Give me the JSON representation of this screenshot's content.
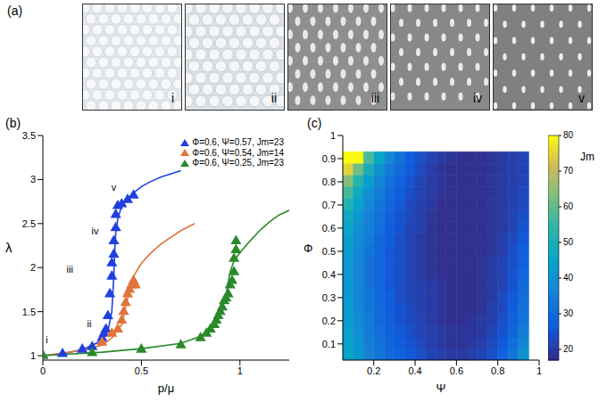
{
  "image_panel": {
    "letter": "(a)",
    "labels": [
      "i",
      "ii",
      "iii",
      "iv",
      "v"
    ]
  },
  "chart_data": [
    {
      "letter": "(b)",
      "type": "scatter",
      "x_label": "p/μ",
      "y_label": "λ",
      "xlim": [
        0,
        1.25
      ],
      "ylim": [
        0.95,
        3.5
      ],
      "xticks": [
        0,
        0.5,
        1
      ],
      "yticks": [
        1,
        1.5,
        2,
        2.5,
        3,
        3.5
      ],
      "legend": "upper right",
      "series": [
        {
          "name": "Φ=0.6, Ψ=0.57, Jm=23",
          "color": "#1f3fe0",
          "marker": "triangle",
          "x": [
            0,
            0.1,
            0.2,
            0.25,
            0.3,
            0.31,
            0.32,
            0.33,
            0.34,
            0.35,
            0.35,
            0.36,
            0.36,
            0.37,
            0.37,
            0.38,
            0.4,
            0.43,
            0.46
          ],
          "values": [
            1,
            1.02,
            1.07,
            1.1,
            1.2,
            1.25,
            1.3,
            1.45,
            1.7,
            1.9,
            2.05,
            2.15,
            2.3,
            2.45,
            2.6,
            2.7,
            2.72,
            2.77,
            2.82
          ],
          "fit": {
            "x": [
              0,
              0.1,
              0.2,
              0.3,
              0.33,
              0.35,
              0.36,
              0.365,
              0.37,
              0.38,
              0.4,
              0.45,
              0.5,
              0.55,
              0.6,
              0.7
            ],
            "values": [
              1,
              1.02,
              1.07,
              1.17,
              1.28,
              1.5,
              1.9,
              2.2,
              2.4,
              2.55,
              2.7,
              2.83,
              2.92,
              2.98,
              3.03,
              3.1
            ]
          }
        },
        {
          "name": "Φ=0.6, Ψ=0.54, Jm=14",
          "color": "#e0733a",
          "marker": "triangle",
          "x": [
            0.3,
            0.35,
            0.38,
            0.4,
            0.41,
            0.42,
            0.43,
            0.44,
            0.45,
            0.46,
            0.47
          ],
          "values": [
            1.15,
            1.25,
            1.3,
            1.4,
            1.5,
            1.6,
            1.7,
            1.75,
            1.8,
            1.85,
            1.8
          ],
          "fit": {
            "x": [
              0,
              0.2,
              0.3,
              0.35,
              0.4,
              0.42,
              0.44,
              0.46,
              0.5,
              0.55,
              0.6,
              0.7,
              0.77
            ],
            "values": [
              1,
              1.06,
              1.12,
              1.2,
              1.35,
              1.55,
              1.75,
              1.9,
              2.05,
              2.17,
              2.27,
              2.42,
              2.5
            ]
          }
        },
        {
          "name": "Φ=0.6, Ψ=0.25, Jm=23",
          "color": "#2a8a2a",
          "marker": "triangle",
          "x": [
            0,
            0.25,
            0.5,
            0.7,
            0.8,
            0.83,
            0.85,
            0.87,
            0.88,
            0.89,
            0.9,
            0.91,
            0.92,
            0.93,
            0.94,
            0.95,
            0.96,
            0.97,
            0.97,
            0.98,
            0.98
          ],
          "values": [
            1,
            1.03,
            1.07,
            1.12,
            1.2,
            1.25,
            1.3,
            1.35,
            1.4,
            1.45,
            1.5,
            1.55,
            1.62,
            1.65,
            1.7,
            1.8,
            1.85,
            1.95,
            2.1,
            2.2,
            2.3
          ],
          "fit": {
            "x": [
              0,
              0.3,
              0.5,
              0.7,
              0.8,
              0.85,
              0.9,
              0.93,
              0.95,
              0.97,
              1,
              1.05,
              1.1,
              1.15,
              1.2,
              1.25
            ],
            "values": [
              1,
              1.04,
              1.08,
              1.14,
              1.22,
              1.32,
              1.5,
              1.7,
              1.95,
              2.08,
              2.17,
              2.3,
              2.42,
              2.52,
              2.6,
              2.65
            ]
          }
        }
      ],
      "annotations": [
        {
          "text": "i",
          "x": 0.02,
          "y": 1.17
        },
        {
          "text": "ii",
          "x": 0.235,
          "y": 1.35
        },
        {
          "text": "iii",
          "x": 0.137,
          "y": 1.97
        },
        {
          "text": "iv",
          "x": 0.265,
          "y": 2.41
        },
        {
          "text": "v",
          "x": 0.36,
          "y": 2.9
        }
      ]
    },
    {
      "letter": "(c)",
      "type": "heatmap",
      "x_label": "Ψ",
      "y_label": "Φ",
      "xlim": [
        0.05,
        1
      ],
      "ylim": [
        0.03,
        1
      ],
      "xticks": [
        0.2,
        0.4,
        0.6,
        0.8,
        1
      ],
      "yticks": [
        0.1,
        0.2,
        0.3,
        0.4,
        0.5,
        0.6,
        0.7,
        0.8,
        0.9,
        1
      ],
      "x": [
        0.075,
        0.125,
        0.175,
        0.225,
        0.275,
        0.325,
        0.375,
        0.425,
        0.475,
        0.525,
        0.575,
        0.625,
        0.675,
        0.725,
        0.775,
        0.825,
        0.875,
        0.925
      ],
      "y": [
        0.055,
        0.105,
        0.155,
        0.205,
        0.255,
        0.305,
        0.355,
        0.405,
        0.455,
        0.505,
        0.555,
        0.605,
        0.655,
        0.705,
        0.755,
        0.805,
        0.855,
        0.905
      ],
      "cells": [
        [
          46,
          42,
          36,
          33,
          30,
          28,
          26,
          24,
          22,
          21,
          20,
          20,
          21,
          22,
          24,
          28,
          33,
          40
        ],
        [
          45,
          41,
          35,
          32,
          29,
          27,
          25,
          23,
          21,
          20,
          19,
          19,
          20,
          21,
          23,
          26,
          31,
          37
        ],
        [
          44,
          40,
          34,
          31,
          28,
          26,
          24,
          22,
          21,
          20,
          19,
          19,
          19,
          20,
          22,
          25,
          29,
          35
        ],
        [
          43,
          39,
          34,
          30,
          28,
          25,
          23,
          22,
          20,
          19,
          18,
          18,
          19,
          20,
          21,
          24,
          28,
          33
        ],
        [
          43,
          38,
          33,
          30,
          27,
          25,
          23,
          21,
          20,
          19,
          18,
          18,
          18,
          19,
          21,
          23,
          27,
          32
        ],
        [
          42,
          37,
          33,
          29,
          27,
          24,
          22,
          21,
          20,
          19,
          18,
          18,
          18,
          19,
          20,
          23,
          26,
          31
        ],
        [
          42,
          37,
          32,
          29,
          26,
          24,
          22,
          21,
          20,
          19,
          18,
          18,
          18,
          19,
          20,
          22,
          25,
          30
        ],
        [
          42,
          37,
          32,
          29,
          26,
          24,
          22,
          20,
          19,
          18,
          18,
          18,
          18,
          19,
          20,
          22,
          25,
          29
        ],
        [
          42,
          37,
          32,
          29,
          26,
          24,
          22,
          20,
          19,
          18,
          18,
          18,
          18,
          19,
          20,
          22,
          24,
          28
        ],
        [
          43,
          38,
          33,
          29,
          26,
          24,
          22,
          20,
          19,
          18,
          18,
          18,
          18,
          18,
          19,
          21,
          24,
          27
        ],
        [
          44,
          39,
          34,
          30,
          27,
          24,
          22,
          20,
          19,
          18,
          18,
          18,
          18,
          18,
          19,
          21,
          23,
          26
        ],
        [
          46,
          40,
          35,
          31,
          27,
          25,
          22,
          21,
          19,
          18,
          18,
          18,
          18,
          18,
          19,
          20,
          22,
          25
        ],
        [
          48,
          42,
          36,
          32,
          28,
          25,
          23,
          21,
          19,
          18,
          18,
          18,
          18,
          18,
          19,
          20,
          22,
          24
        ],
        [
          52,
          45,
          38,
          33,
          29,
          26,
          23,
          21,
          20,
          18,
          18,
          18,
          18,
          18,
          19,
          20,
          21,
          23
        ],
        [
          57,
          48,
          40,
          35,
          30,
          27,
          24,
          22,
          20,
          19,
          18,
          18,
          18,
          18,
          19,
          20,
          21,
          23
        ],
        [
          64,
          53,
          44,
          37,
          32,
          28,
          25,
          22,
          20,
          19,
          18,
          18,
          18,
          18,
          19,
          20,
          21,
          22
        ],
        [
          75,
          62,
          50,
          41,
          34,
          30,
          26,
          23,
          21,
          19,
          18,
          18,
          18,
          18,
          19,
          20,
          21,
          22
        ],
        [
          80,
          80,
          58,
          46,
          38,
          32,
          27,
          24,
          22,
          20,
          19,
          18,
          18,
          18,
          19,
          20,
          21,
          22
        ]
      ],
      "colorbar": {
        "label": "Jm",
        "range": [
          17,
          80
        ],
        "ticks": [
          20,
          30,
          40,
          50,
          60,
          70,
          80
        ]
      }
    }
  ]
}
